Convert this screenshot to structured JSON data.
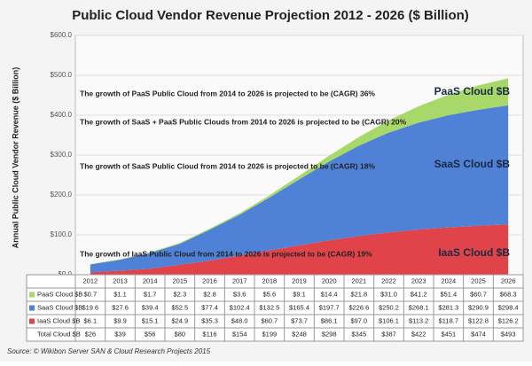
{
  "chart_data": {
    "type": "stacked-area",
    "title": "Public Cloud Vendor Revenue Projection 2012 - 2026 ($ Billion)",
    "y_label": "Annual Public Cloud Vendor Revenue ($ Billion)",
    "source": "Source: © Wikibon Server SAN & Cloud Research Projects 2015",
    "categories": [
      "2012",
      "2013",
      "2014",
      "2015",
      "2016",
      "2017",
      "2018",
      "2019",
      "2020",
      "2021",
      "2022",
      "2023",
      "2024",
      "2025",
      "2026"
    ],
    "ylim": [
      0,
      600
    ],
    "yticks": [
      {
        "value": 0,
        "label": "$0.0"
      },
      {
        "value": 100,
        "label": "$100.0"
      },
      {
        "value": 200,
        "label": "$200.0"
      },
      {
        "value": 300,
        "label": "$300.0"
      },
      {
        "value": 400,
        "label": "$400.0"
      },
      {
        "value": 500,
        "label": "$500.0"
      },
      {
        "value": 600,
        "label": "$600.0"
      }
    ],
    "grid": true,
    "series": [
      {
        "name": "PaaS Cloud $B",
        "color": "#a8d86a",
        "values": [
          0.7,
          1.1,
          1.7,
          2.3,
          2.8,
          3.6,
          5.6,
          9.1,
          14.4,
          21.8,
          31.0,
          41.2,
          51.4,
          60.7,
          68.3
        ],
        "value_labels": [
          "$0.7",
          "$1.1",
          "$1.7",
          "$2.3",
          "$2.8",
          "$3.6",
          "$5.6",
          "$9.1",
          "$14.4",
          "$21.8",
          "$31.0",
          "$41.2",
          "$51.4",
          "$60.7",
          "$68.3"
        ]
      },
      {
        "name": "SaaS Cloud $B",
        "color": "#4f81d6",
        "values": [
          19.6,
          27.6,
          39.4,
          52.5,
          77.4,
          102.4,
          132.5,
          165.4,
          197.7,
          226.6,
          250.2,
          268.1,
          281.3,
          290.9,
          298.4
        ],
        "value_labels": [
          "$19.6",
          "$27.6",
          "$39.4",
          "$52.5",
          "$77.4",
          "$102.4",
          "$132.5",
          "$165.4",
          "$197.7",
          "$226.6",
          "$250.2",
          "$268.1",
          "$281.3",
          "$290.9",
          "$298.4"
        ]
      },
      {
        "name": "IaaS Cloud $B",
        "color": "#e0444a",
        "values": [
          6.1,
          9.9,
          15.1,
          24.9,
          35.3,
          48.0,
          60.7,
          73.7,
          86.1,
          97.0,
          106.1,
          113.2,
          118.7,
          122.8,
          126.2
        ],
        "value_labels": [
          "$6.1",
          "$9.9",
          "$15.1",
          "$24.9",
          "$35.3",
          "$48.0",
          "$60.7",
          "$73.7",
          "$86.1",
          "$97.0",
          "$106.1",
          "$113.2",
          "$118.7",
          "$122.8",
          "$126.2"
        ]
      }
    ],
    "totals": {
      "name": "Total Cloud $B",
      "values": [
        26,
        39,
        56,
        80,
        116,
        154,
        199,
        248,
        298,
        345,
        387,
        422,
        451,
        474,
        493
      ],
      "value_labels": [
        "$26",
        "$39",
        "$56",
        "$80",
        "$116",
        "$154",
        "$199",
        "$248",
        "$298",
        "$345",
        "$387",
        "$422",
        "$451",
        "$474",
        "$493"
      ]
    },
    "annotations": [
      "The growth of PaaS Public Cloud from 2014 to 2026 is projected to be (CAGR) 36%",
      "The growth of SaaS + PaaS Public Clouds from 2014 to 2026 is projected to be (CAGR) 20%",
      "The growth of SaaS Public Cloud from 2014 to 2026 is projected to be (CAGR) 18%",
      "The growth of IaaS Public Cloud from 2014 to 2026 is projected to be (CAGR) 19%"
    ]
  }
}
